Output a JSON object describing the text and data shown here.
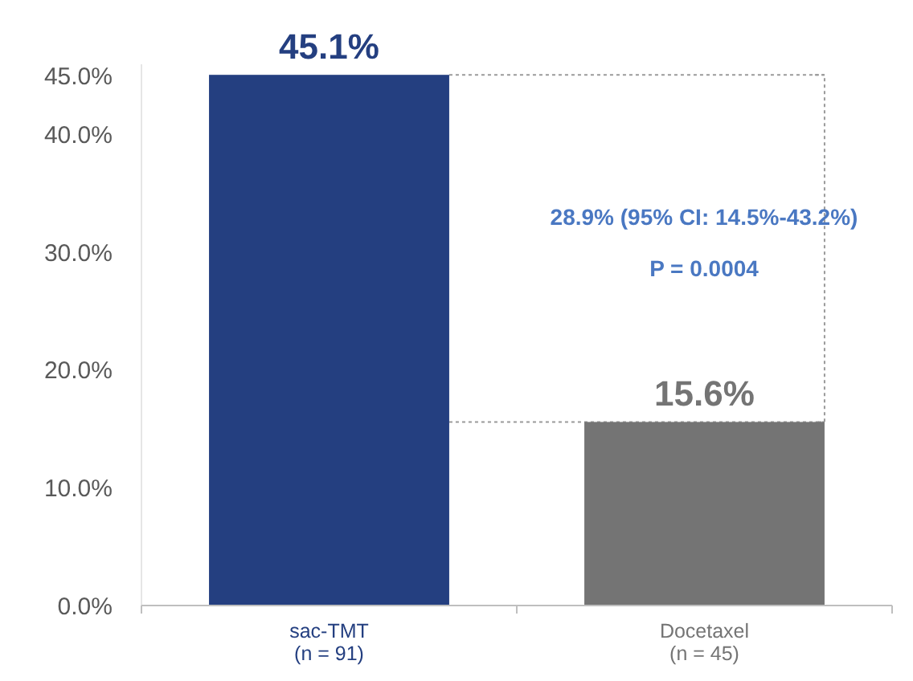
{
  "chart_data": {
    "type": "bar",
    "categories": [
      "sac-TMT\n(n = 91)",
      "Docetaxel\n(n = 45)"
    ],
    "values": [
      45.1,
      15.6
    ],
    "colors": [
      "#243f80",
      "#747474"
    ],
    "value_labels": [
      "45.1%",
      "15.6%"
    ],
    "ylim": [
      0,
      46
    ],
    "yticks": [
      {
        "value": 0,
        "label": "0.0%"
      },
      {
        "value": 10,
        "label": "10.0%"
      },
      {
        "value": 20,
        "label": "20.0%"
      },
      {
        "value": 30,
        "label": "30.0%"
      },
      {
        "value": 40,
        "label": "40.0%"
      },
      {
        "value": 45,
        "label": "45.0%"
      }
    ],
    "annotations": [
      "28.9% (95% CI: 14.5%-43.2%)",
      "P = 0.0004"
    ],
    "ref_lines": [
      {
        "axis": "y",
        "value": 45.1,
        "color": "#9a9a9a",
        "line_style": "dotted"
      },
      {
        "axis": "y",
        "value": 15.6,
        "color": "#9a9a9a",
        "line_style": "dotted"
      }
    ],
    "grid": false
  }
}
